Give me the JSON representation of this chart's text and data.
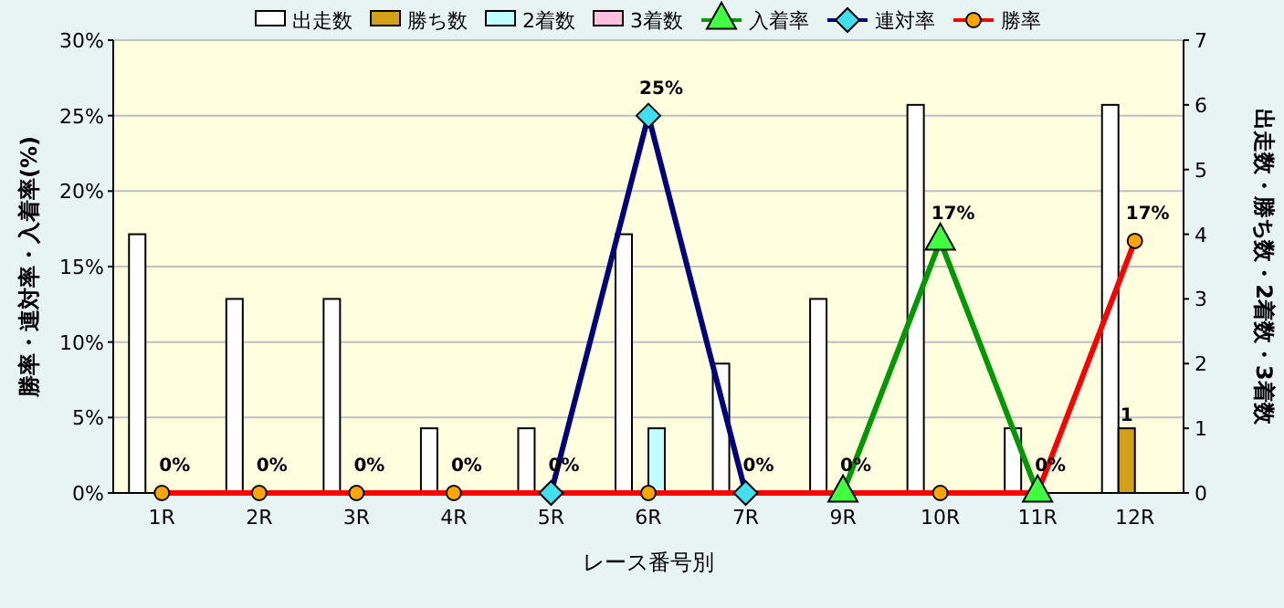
{
  "chart_data": {
    "type": "bar",
    "xlabel": "レース番号別",
    "ylabel": "勝率・連対率・入着率(%)",
    "y2label": "出走数・勝ち数・2着数・3着数",
    "categories": [
      "1R",
      "2R",
      "3R",
      "4R",
      "5R",
      "6R",
      "7R",
      "9R",
      "10R",
      "11R",
      "12R"
    ],
    "series": [
      {
        "name": "出走数",
        "axis": "y2",
        "color": "#ffffff",
        "values": [
          4,
          3,
          3,
          1,
          1,
          4,
          2,
          3,
          6,
          1,
          6
        ]
      },
      {
        "name": "勝ち数",
        "axis": "y2",
        "color": "#d4a017",
        "values": [
          0,
          0,
          0,
          0,
          0,
          0,
          0,
          0,
          0,
          0,
          1
        ],
        "value_labels": [
          null,
          null,
          null,
          null,
          null,
          null,
          null,
          null,
          null,
          null,
          "1"
        ]
      },
      {
        "name": "2着数",
        "axis": "y2",
        "color": "#c0ffff",
        "values": [
          0,
          0,
          0,
          0,
          0,
          1,
          0,
          0,
          0,
          0,
          0
        ]
      },
      {
        "name": "3着数",
        "axis": "y2",
        "color": "#ffc0e0",
        "values": [
          0,
          0,
          0,
          0,
          0,
          0,
          0,
          0,
          0,
          0,
          0
        ]
      },
      {
        "name": "入着率",
        "type": "line",
        "color": "#009900",
        "marker": "triangle",
        "values": [
          null,
          null,
          null,
          null,
          null,
          null,
          null,
          0,
          16.7,
          0,
          null
        ]
      },
      {
        "name": "連対率",
        "type": "line",
        "color": "#000080",
        "marker": "diamond",
        "values": [
          null,
          null,
          null,
          null,
          0,
          25,
          0,
          null,
          null,
          null,
          null
        ]
      },
      {
        "name": "勝率",
        "type": "line",
        "color": "#ff0000",
        "marker": "circle",
        "values": [
          0,
          0,
          0,
          0,
          0,
          0,
          0,
          0,
          0,
          0,
          16.7
        ]
      }
    ],
    "annotations": [
      {
        "text": "0%",
        "x": "1R",
        "y": 0
      },
      {
        "text": "0%",
        "x": "2R",
        "y": 0
      },
      {
        "text": "0%",
        "x": "3R",
        "y": 0
      },
      {
        "text": "0%",
        "x": "4R",
        "y": 0
      },
      {
        "text": "0%",
        "x": "5R",
        "y": 0
      },
      {
        "text": "25%",
        "x": "6R",
        "y": 25
      },
      {
        "text": "0%",
        "x": "7R",
        "y": 0
      },
      {
        "text": "0%",
        "x": "9R",
        "y": 0
      },
      {
        "text": "17%",
        "x": "10R",
        "y": 16.7
      },
      {
        "text": "0%",
        "x": "11R",
        "y": 0
      },
      {
        "text": "17%",
        "x": "12R",
        "y": 16.7
      }
    ],
    "ylim": [
      0,
      30
    ],
    "yticks": [
      {
        "value": 0,
        "label": "0%"
      },
      {
        "value": 5,
        "label": "5%"
      },
      {
        "value": 10,
        "label": "10%"
      },
      {
        "value": 15,
        "label": "15%"
      },
      {
        "value": 20,
        "label": "20%"
      },
      {
        "value": 25,
        "label": "25%"
      },
      {
        "value": 30,
        "label": "30%"
      }
    ],
    "y2lim": [
      0,
      7
    ],
    "y2ticks": [
      0,
      1,
      2,
      3,
      4,
      5,
      6,
      7
    ],
    "grid": "y",
    "legend": "top"
  }
}
